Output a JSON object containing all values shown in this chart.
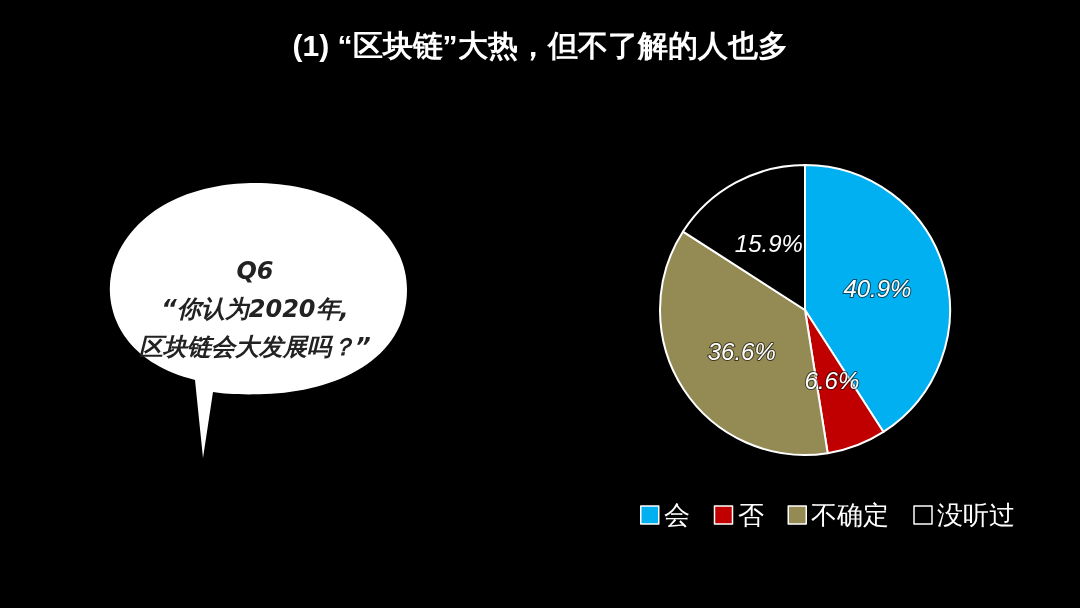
{
  "chart_data": {
    "type": "pie",
    "title": "(1) “区块链”大热，但不了解的人也多",
    "categories": [
      "会",
      "否",
      "不确定",
      "没听过"
    ],
    "values": [
      40.9,
      6.6,
      36.6,
      15.9
    ],
    "colors": [
      "#00b0f0",
      "#c00000",
      "#948a54",
      "#000000"
    ],
    "value_labels": [
      "40.9%",
      "6.6%",
      "36.6%",
      "15.9%"
    ],
    "legend": "bottom right",
    "annotations": [
      "Q6\n“你认为2020年,\n区块链会大发展吗？”"
    ]
  }
}
